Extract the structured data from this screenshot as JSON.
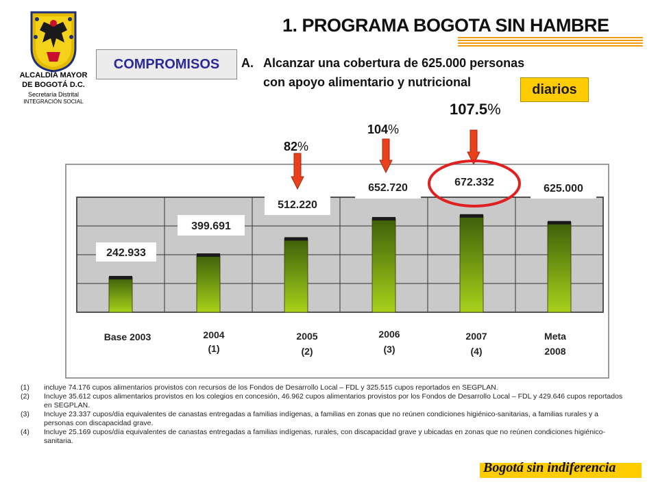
{
  "logo": {
    "lines": [
      "ALCALDÍA MAYOR",
      "DE BOGOTÁ D.C.",
      "Secretaría Distrital",
      "INTEGRACIÓN SOCIAL"
    ]
  },
  "title": "1. PROGRAMA BOGOTA SIN HAMBRE",
  "commitments_label": "COMPROMISOS",
  "goal": {
    "marker": "A.",
    "line1": "Alcanzar una cobertura de 625.000 personas",
    "line2": "con apoyo alimentario y nutricional",
    "highlight": "diarios"
  },
  "percentages": [
    {
      "value": "82",
      "suffix": "%"
    },
    {
      "value": "104",
      "suffix": "%"
    },
    {
      "value": "107.5",
      "suffix": "%"
    }
  ],
  "chart_data": {
    "type": "bar",
    "categories": [
      "Base 2003",
      "2004 (1)",
      "2005 (2)",
      "2006 (3)",
      "2007 (4)",
      "Meta 2008"
    ],
    "category_lines": [
      [
        "Base 2003"
      ],
      [
        "2004",
        "(1)"
      ],
      [
        "2005",
        "(2)"
      ],
      [
        "2006",
        "(3)"
      ],
      [
        "2007",
        "(4)"
      ],
      [
        "Meta",
        "2008"
      ]
    ],
    "values": [
      242933,
      399691,
      512220,
      652720,
      672332,
      625000
    ],
    "data_labels": [
      "242.933",
      "399.691",
      "512.220",
      "652.720",
      "672.332",
      "625.000"
    ],
    "ylim": [
      0,
      800000
    ],
    "grid": true,
    "colors": {
      "bar_top": "#3e5f0a",
      "bar_bottom": "#a8d21a",
      "bar_cap": "#1a1a1a",
      "plot_bg": "#c9c9c9",
      "arrow": "#e8401c",
      "highlight_ring": "#e02020"
    }
  },
  "footnotes": [
    {
      "num": "(1)",
      "text": "incluye 74.176 cupos alimentarios provistos con recursos de los Fondos de Desarrollo Local – FDL y 325.515 cupos reportados en SEGPLAN."
    },
    {
      "num": "(2)",
      "text": "Incluye 35.612 cupos alimentarios provistos en los colegios en concesión, 46.962 cupos alimentarios provistos por los Fondos de Desarrollo Local – FDL y 429.646 cupos reportados en SEGPLAN."
    },
    {
      "num": "(3)",
      "text": "Incluye 23.337 cupos/día equivalentes de canastas entregadas a familias indígenas, a familias en zonas que no reúnen condiciones higiénico-sanitarias, a familias rurales y a personas con discapacidad grave."
    },
    {
      "num": "(4)",
      "text": "Incluye 25.169 cupos/día equivalentes de canastas entregadas a familias indígenas, rurales, con discapacidad grave y ubicadas en zonas que no reúnen condiciones higiénico-sanitaria."
    }
  ],
  "slogan": "Bogotá sin indiferencia"
}
